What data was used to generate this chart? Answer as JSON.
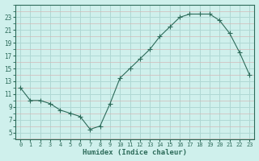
{
  "x": [
    0,
    1,
    2,
    3,
    4,
    5,
    6,
    7,
    8,
    9,
    10,
    11,
    12,
    13,
    14,
    15,
    16,
    17,
    18,
    19,
    20,
    21,
    22,
    23
  ],
  "y": [
    12.0,
    10.0,
    10.0,
    9.5,
    8.5,
    8.0,
    7.5,
    5.5,
    6.0,
    9.5,
    13.5,
    15.0,
    16.5,
    18.0,
    20.0,
    21.5,
    23.0,
    23.5,
    23.5,
    23.5,
    22.5,
    20.5,
    17.5,
    14.0
  ],
  "xlabel": "Humidex (Indice chaleur)",
  "xlim": [
    -0.5,
    23.5
  ],
  "ylim": [
    4,
    25
  ],
  "yticks": [
    5,
    7,
    9,
    11,
    13,
    15,
    17,
    19,
    21,
    23
  ],
  "xticks": [
    0,
    1,
    2,
    3,
    4,
    5,
    6,
    7,
    8,
    9,
    10,
    11,
    12,
    13,
    14,
    15,
    16,
    17,
    18,
    19,
    20,
    21,
    22,
    23
  ],
  "line_color": "#2d6b5a",
  "marker": "+",
  "marker_size": 4,
  "bg_color": "#cff0ec",
  "minor_grid_color": "#d4b8b8",
  "major_grid_color": "#b0d8d4"
}
